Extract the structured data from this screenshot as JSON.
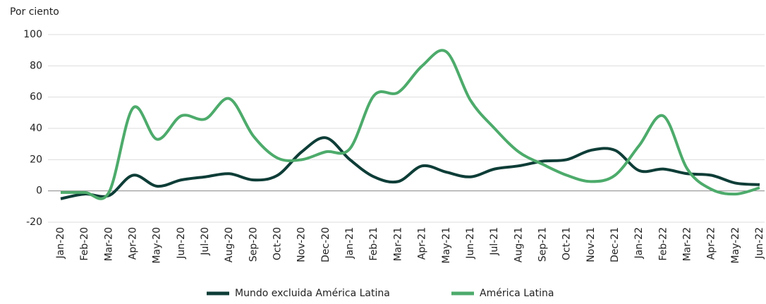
{
  "chart_data": {
    "type": "line",
    "ylabel": "Por ciento",
    "categories": [
      "Jan-20",
      "Feb-20",
      "Mar-20",
      "Apr-20",
      "May-20",
      "Jun-20",
      "Jul-20",
      "Aug-20",
      "Sep-20",
      "Oct-20",
      "Nov-20",
      "Dec-20",
      "Jan-21",
      "Feb-21",
      "Mar-21",
      "Apr-21",
      "May-21",
      "Jun-21",
      "Jul-21",
      "Aug-21",
      "Sep-21",
      "Oct-21",
      "Nov-21",
      "Dec-21",
      "Jan-22",
      "Feb-22",
      "Mar-22",
      "Apr-22",
      "May-22",
      "Jun-22"
    ],
    "series": [
      {
        "name": "Mundo excluida América Latina",
        "color": "#0e3d37",
        "values": [
          -5,
          -2,
          -3,
          10,
          3,
          7,
          9,
          11,
          7,
          10,
          25,
          34,
          20,
          9,
          6,
          16,
          12,
          9,
          14,
          16,
          19,
          20,
          26,
          26,
          13,
          14,
          11,
          10,
          5,
          4
        ]
      },
      {
        "name": "América Latina",
        "color": "#4dab6b",
        "values": [
          -1,
          -1,
          -1,
          53,
          33,
          48,
          46,
          59,
          35,
          21,
          20,
          25,
          27,
          61,
          63,
          80,
          89,
          58,
          40,
          25,
          17,
          10,
          6,
          10,
          29,
          48,
          14,
          1,
          -2,
          2
        ]
      }
    ],
    "ylim": [
      -20,
      100
    ],
    "yticks": [
      -20,
      0,
      20,
      40,
      60,
      80,
      100
    ],
    "grid": true,
    "legend": "bottom"
  }
}
